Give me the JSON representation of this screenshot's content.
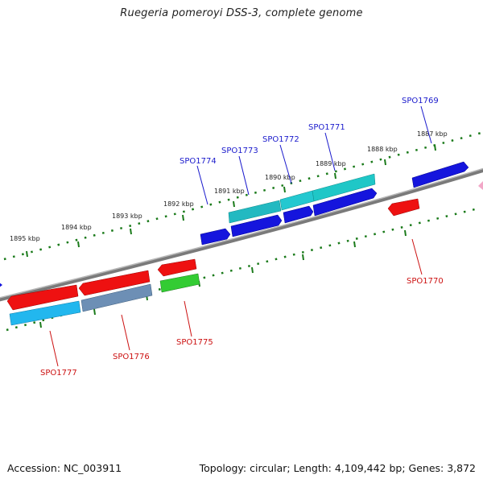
{
  "title": "Ruegeria pomeroyi DSS-3, complete genome",
  "footer": {
    "accession": "Accession: NC_003911",
    "summary": "Topology: circular; Length: 4,109,442 bp; Genes: 3,872"
  },
  "ticks": [
    "1887 kbp",
    "1888 kbp",
    "1889 kbp",
    "1890 kbp",
    "1891 kbp",
    "1892 kbp",
    "1893 kbp",
    "1894 kbp",
    "1895 kbp"
  ],
  "gene_labels": {
    "forward": [
      "SPO1769",
      "SPO1771",
      "SPO1772",
      "SPO1773",
      "SPO1774"
    ],
    "reverse": [
      "SPO1770",
      "SPO1775",
      "SPO1776",
      "SPO1777"
    ]
  },
  "colors": {
    "forward_label": "#1a1acc",
    "reverse_label": "#cc1111",
    "tick": "#1a7a1a",
    "backbone": "#808080"
  }
}
